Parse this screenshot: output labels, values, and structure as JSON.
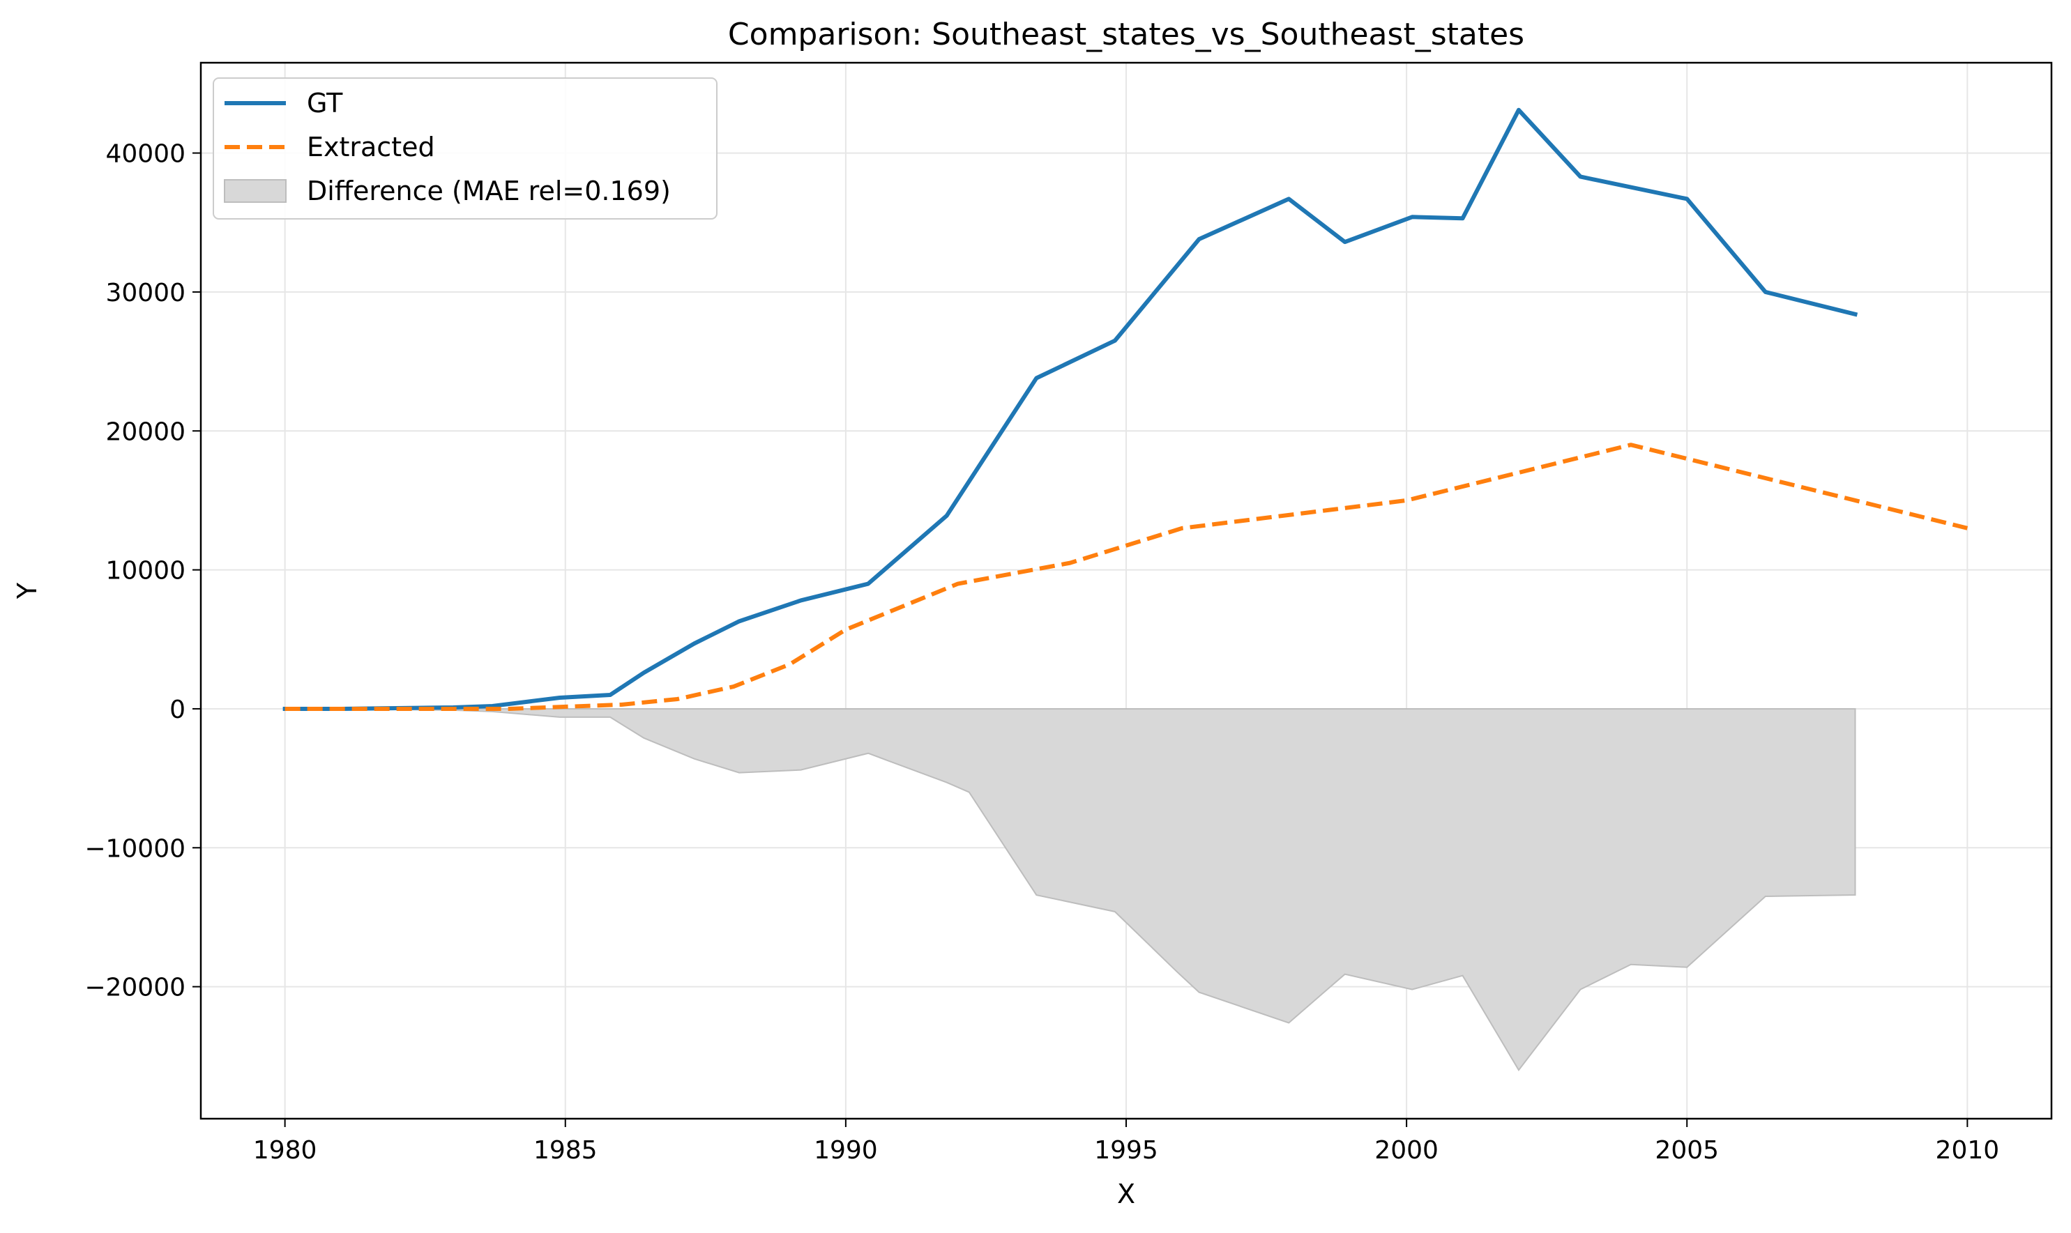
{
  "chart_data": {
    "type": "line",
    "title": "Comparison: Southeast_states_vs_Southeast_states",
    "xlabel": "X",
    "ylabel": "Y",
    "xlim": [
      1978.5,
      2011.5
    ],
    "ylim": [
      -29500,
      46500
    ],
    "xticks": [
      1980,
      1985,
      1990,
      1995,
      2000,
      2005,
      2010
    ],
    "yticks": [
      -20000,
      -10000,
      0,
      10000,
      20000,
      30000,
      40000
    ],
    "ytick_labels": [
      "−20000",
      "−10000",
      "0",
      "10000",
      "20000",
      "30000",
      "40000"
    ],
    "grid": true,
    "legend_position": "upper-left",
    "series": [
      {
        "name": "GT",
        "style": "solid",
        "color": "#1f77b4",
        "x": [
          1980,
          1981,
          1982,
          1983,
          1983.7,
          1984.9,
          1985.8,
          1986.4,
          1987.3,
          1988.1,
          1989.2,
          1990.4,
          1991.8,
          1993.4,
          1994.8,
          1996.3,
          1997.9,
          1998.9,
          2000.1,
          2001,
          2002,
          2003.1,
          2005,
          2006.4,
          2008
        ],
        "y": [
          0,
          0,
          50,
          100,
          200,
          800,
          1000,
          2600,
          4700,
          6300,
          7800,
          9000,
          13900,
          23800,
          26500,
          33800,
          36700,
          33600,
          35400,
          35300,
          43100,
          38300,
          36700,
          30000,
          28400
        ]
      },
      {
        "name": "Extracted",
        "style": "dashed",
        "color": "#ff7f0e",
        "x": [
          1980,
          1982,
          1984,
          1986,
          1987,
          1988,
          1989,
          1990,
          1992,
          1994,
          1996,
          1998,
          2000,
          2002,
          2004,
          2006,
          2008,
          2010
        ],
        "y": [
          0,
          0,
          0,
          300,
          700,
          1600,
          3200,
          5700,
          9000,
          10500,
          13000,
          14000,
          15000,
          17000,
          19000,
          17000,
          15000,
          13000
        ]
      }
    ],
    "difference": {
      "name": "Difference (MAE rel=0.169)",
      "color": "#d8d8d8",
      "edge_color": "#bdbdbd",
      "x": [
        1980,
        1981,
        1982,
        1983,
        1983.7,
        1984.9,
        1985.8,
        1986.4,
        1987.3,
        1988.1,
        1989.2,
        1990.4,
        1991.8,
        1992.2,
        1993.4,
        1994.8,
        1995.9,
        1996.3,
        1997.9,
        1998.9,
        2000.1,
        2001,
        2002,
        2003.1,
        2004,
        2005,
        2006.4,
        2008
      ],
      "y": [
        0,
        0,
        -50,
        -100,
        -200,
        -600,
        -600,
        -2100,
        -3600,
        -4600,
        -4400,
        -3200,
        -5300,
        -6000,
        -13400,
        -14600,
        -18900,
        -20400,
        -22600,
        -19100,
        -20200,
        -19200,
        -26000,
        -20200,
        -18400,
        -18600,
        -13500,
        -13400
      ]
    }
  }
}
